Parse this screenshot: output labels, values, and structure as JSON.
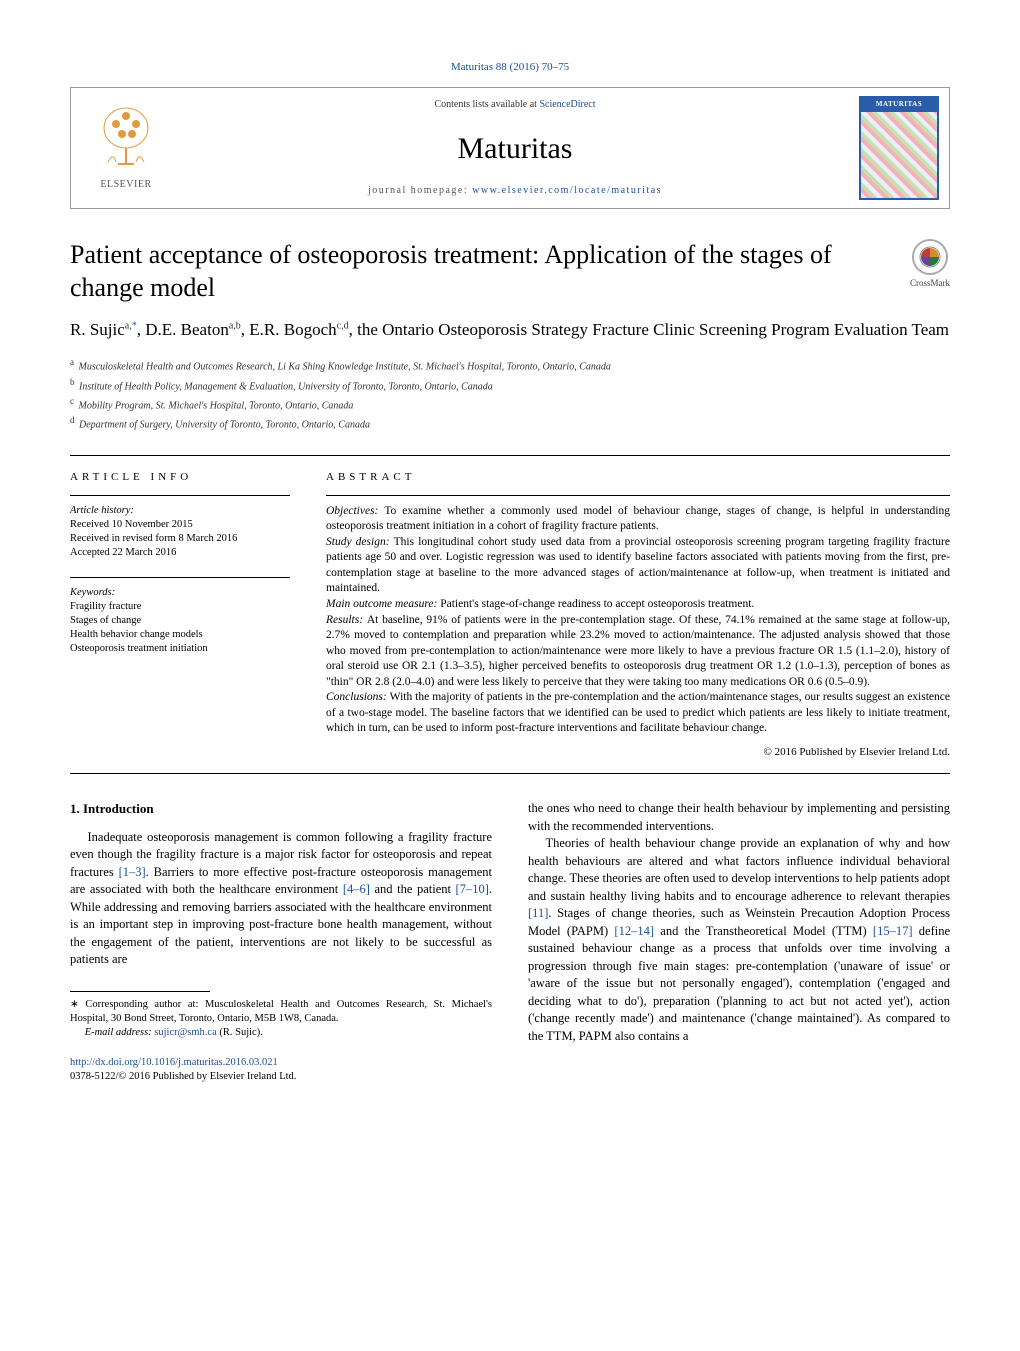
{
  "colors": {
    "link": "#1a4f9c",
    "text": "#000000",
    "border": "#999999",
    "rule": "#000000",
    "cover_border": "#2a5caa"
  },
  "typography": {
    "body_family": "Georgia, 'Times New Roman', serif",
    "title_fontsize_pt": 20,
    "journal_fontsize_pt": 23,
    "body_fontsize_pt": 10,
    "abstract_fontsize_pt": 9,
    "info_fontsize_pt": 8
  },
  "header": {
    "journal_ref_pre": "Maturitas 88 (2016) 70–75",
    "contents_line_pre": "Contents lists available at ",
    "contents_link": "ScienceDirect",
    "journal_name": "Maturitas",
    "homepage_pre": "journal homepage: ",
    "homepage_link": "www.elsevier.com/locate/maturitas",
    "publisher_label": "ELSEVIER",
    "cover_label": "MATURITAS",
    "crossmark_label": "CrossMark"
  },
  "article": {
    "title": "Patient acceptance of osteoporosis treatment: Application of the stages of change model",
    "authors_html_parts": {
      "a1_name": "R. Sujic",
      "a1_aff": "a,",
      "a1_corr": "*",
      "a2_name": ", D.E. Beaton",
      "a2_aff": "a,b",
      "a3_name": ", E.R. Bogoch",
      "a3_aff": "c,d",
      "group": ", the Ontario Osteoporosis Strategy Fracture Clinic Screening Program Evaluation Team"
    },
    "affiliations": [
      {
        "key": "a",
        "text": "Musculoskeletal Health and Outcomes Research, Li Ka Shing Knowledge Institute, St. Michael's Hospital, Toronto, Ontario, Canada"
      },
      {
        "key": "b",
        "text": "Institute of Health Policy, Management & Evaluation, University of Toronto, Toronto, Ontario, Canada"
      },
      {
        "key": "c",
        "text": "Mobility Program, St. Michael's Hospital, Toronto, Ontario, Canada"
      },
      {
        "key": "d",
        "text": "Department of Surgery, University of Toronto, Toronto, Ontario, Canada"
      }
    ]
  },
  "article_info": {
    "label": "ARTICLE INFO",
    "history_label": "Article history:",
    "history": [
      "Received 10 November 2015",
      "Received in revised form 8 March 2016",
      "Accepted 22 March 2016"
    ],
    "keywords_label": "Keywords:",
    "keywords": [
      "Fragility fracture",
      "Stages of change",
      "Health behavior change models",
      "Osteoporosis treatment initiation"
    ]
  },
  "abstract": {
    "label": "ABSTRACT",
    "sections": {
      "objectives_lead": "Objectives: ",
      "objectives": "To examine whether a commonly used model of behaviour change, stages of change, is helpful in understanding osteoporosis treatment initiation in a cohort of fragility fracture patients.",
      "study_design_lead": "Study design: ",
      "study_design": "This longitudinal cohort study used data from a provincial osteoporosis screening program targeting fragility fracture patients age 50 and over. Logistic regression was used to identify baseline factors associated with patients moving from the first, pre-contemplation stage at baseline to the more advanced stages of action/maintenance at follow-up, when treatment is initiated and maintained.",
      "outcome_lead": "Main outcome measure: ",
      "outcome": "Patient's stage-of-change readiness to accept osteoporosis treatment.",
      "results_lead": "Results: ",
      "results": "At baseline, 91% of patients were in the pre-contemplation stage. Of these, 74.1% remained at the same stage at follow-up, 2.7% moved to contemplation and preparation while 23.2% moved to action/maintenance. The adjusted analysis showed that those who moved from pre-contemplation to action/maintenance were more likely to have a previous fracture OR 1.5 (1.1–2.0), history of oral steroid use OR 2.1 (1.3–3.5), higher perceived benefits to osteoporosis drug treatment OR 1.2 (1.0–1.3), perception of bones as \"thin\" OR 2.8 (2.0–4.0) and were less likely to perceive that they were taking too many medications OR 0.6 (0.5–0.9).",
      "conclusions_lead": "Conclusions: ",
      "conclusions": "With the majority of patients in the pre-contemplation and the action/maintenance stages, our results suggest an existence of a two-stage model. The baseline factors that we identified can be used to predict which patients are less likely to initiate treatment, which in turn, can be used to inform post-fracture interventions and facilitate behaviour change."
    },
    "copyright": "© 2016 Published by Elsevier Ireland Ltd."
  },
  "body": {
    "section_number": "1.",
    "section_title": "Introduction",
    "left_p1_pre": "Inadequate osteoporosis management is common following a fragility fracture even though the fragility fracture is a major risk factor for osteoporosis and repeat fractures ",
    "ref1": "[1–3]",
    "left_p1_mid1": ". Barriers to more effective post-fracture osteoporosis management are associated with both the healthcare environment ",
    "ref2": "[4–6]",
    "left_p1_mid2": " and the patient ",
    "ref3": "[7–10]",
    "left_p1_post": ". While addressing and removing barriers associated with the healthcare environment is an important step in improving post-fracture bone health management, without the engagement of the patient, interventions are not likely to be successful as patients are",
    "right_p1": "the ones who need to change their health behaviour by implementing and persisting with the recommended interventions.",
    "right_p2_pre": "Theories of health behaviour change provide an explanation of why and how health behaviours are altered and what factors influence individual behavioral change. These theories are often used to develop interventions to help patients adopt and sustain healthy living habits and to encourage adherence to relevant therapies ",
    "ref4": "[11]",
    "right_p2_mid1": ". Stages of change theories, such as Weinstein Precaution Adoption Process Model (PAPM) ",
    "ref5": "[12–14]",
    "right_p2_mid2": " and the Transtheoretical Model (TTM) ",
    "ref6": "[15–17]",
    "right_p2_post": " define sustained behaviour change as a process that unfolds over time involving a progression through five main stages: pre-contemplation ('unaware of issue' or 'aware of the issue but not personally engaged'), contemplation ('engaged and deciding what to do'), preparation ('planning to act but not acted yet'), action ('change recently made') and maintenance ('change maintained'). As compared to the TTM, PAPM also contains a"
  },
  "footnote": {
    "corr_label": "∗",
    "corr_text": "Corresponding author at: Musculoskeletal Health and Outcomes Research, St. Michael's Hospital, 30 Bond Street, Toronto, Ontario, M5B 1W8, Canada.",
    "email_label": "E-mail address: ",
    "email": "sujicr@smh.ca",
    "email_for": " (R. Sujic)."
  },
  "doi": {
    "url": "http://dx.doi.org/10.1016/j.maturitas.2016.03.021",
    "issn_line": "0378-5122/© 2016 Published by Elsevier Ireland Ltd."
  }
}
